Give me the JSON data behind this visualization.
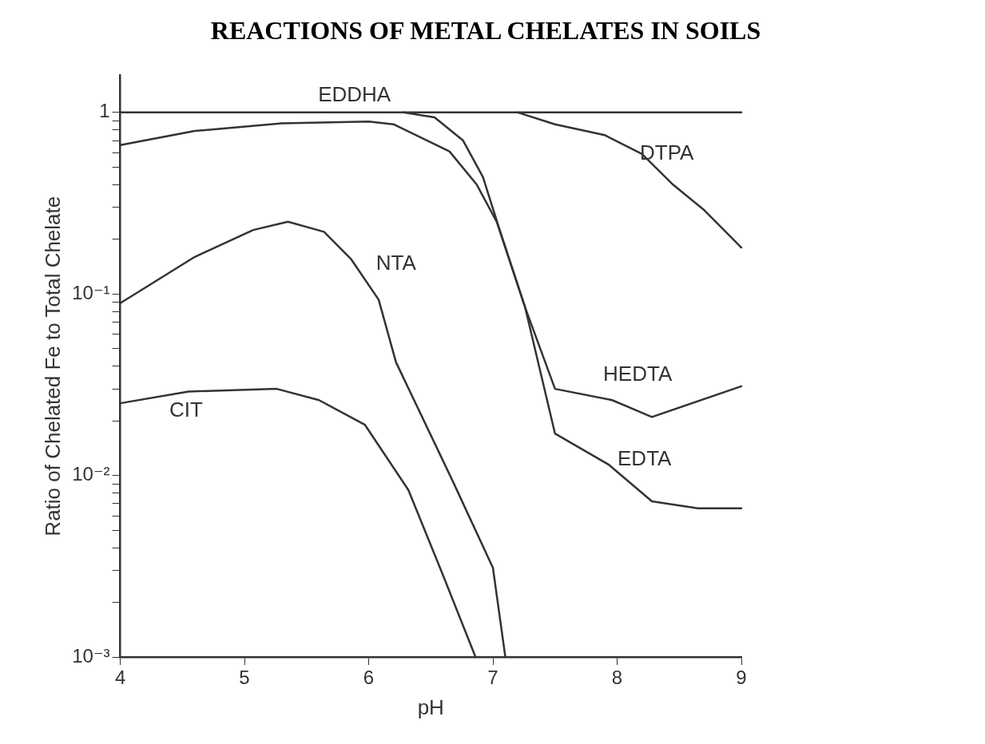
{
  "chart_data": {
    "type": "line",
    "title": "REACTIONS OF METAL CHELATES IN SOILS",
    "xlabel": "pH",
    "ylabel": "Ratio of Chelated Fe to Total Chelate",
    "log": "y",
    "legend": false,
    "grid": false,
    "marker": "none",
    "line_style": "solid",
    "xlim": [
      4,
      9
    ],
    "xticks": [
      4,
      5,
      6,
      7,
      8,
      9
    ],
    "ylim": [
      0.001,
      1.6
    ],
    "yticks": [
      {
        "value": 0.001,
        "label": "10⁻³"
      },
      {
        "value": 0.002,
        "label": null
      },
      {
        "value": 0.003,
        "label": null
      },
      {
        "value": 0.004,
        "label": null
      },
      {
        "value": 0.005,
        "label": null
      },
      {
        "value": 0.006,
        "label": null
      },
      {
        "value": 0.007,
        "label": null
      },
      {
        "value": 0.008,
        "label": null
      },
      {
        "value": 0.009,
        "label": null
      },
      {
        "value": 0.01,
        "label": "10⁻²"
      },
      {
        "value": 0.02,
        "label": null
      },
      {
        "value": 0.03,
        "label": null
      },
      {
        "value": 0.04,
        "label": null
      },
      {
        "value": 0.05,
        "label": null
      },
      {
        "value": 0.06,
        "label": null
      },
      {
        "value": 0.07,
        "label": null
      },
      {
        "value": 0.08,
        "label": null
      },
      {
        "value": 0.09,
        "label": null
      },
      {
        "value": 0.1,
        "label": "10⁻¹"
      },
      {
        "value": 0.2,
        "label": null
      },
      {
        "value": 0.3,
        "label": null
      },
      {
        "value": 0.4,
        "label": null
      },
      {
        "value": 0.5,
        "label": null
      },
      {
        "value": 0.6,
        "label": null
      },
      {
        "value": 0.7,
        "label": null
      },
      {
        "value": 0.8,
        "label": null
      },
      {
        "value": 0.9,
        "label": null
      },
      {
        "value": 1,
        "label": "1"
      }
    ],
    "series": [
      {
        "name": "EDDHA",
        "color": "#333333",
        "x": [
          4,
          9
        ],
        "values": [
          1,
          1
        ]
      },
      {
        "name": "DTPA",
        "color": "#333333",
        "x": [
          7.2,
          7.5,
          7.9,
          8.2,
          8.45,
          8.7,
          9
        ],
        "values": [
          1,
          0.86,
          0.75,
          0.59,
          0.4,
          0.29,
          0.18
        ]
      },
      {
        "name": "HEDTA",
        "color": "#333333",
        "x": [
          4,
          4.6,
          5.3,
          6,
          6.2,
          6.65,
          6.87,
          7.03,
          7.26,
          7.5,
          7.96,
          8.28,
          9
        ],
        "values": [
          0.66,
          0.79,
          0.87,
          0.89,
          0.86,
          0.61,
          0.4,
          0.25,
          0.084,
          0.03,
          0.026,
          0.021,
          0.031
        ]
      },
      {
        "name": "EDTA",
        "color": "#333333",
        "x": [
          6.28,
          6.53,
          6.76,
          6.92,
          7.05,
          7.26,
          7.5,
          7.93,
          8.28,
          8.65,
          9
        ],
        "values": [
          1,
          0.94,
          0.7,
          0.44,
          0.23,
          0.084,
          0.017,
          0.0115,
          0.0072,
          0.0066,
          0.0066
        ]
      },
      {
        "name": "NTA",
        "color": "#333333",
        "x": [
          4,
          4.6,
          5.07,
          5.35,
          5.64,
          5.86,
          6.08,
          6.22,
          6.68,
          7,
          7.1
        ],
        "values": [
          0.089,
          0.16,
          0.225,
          0.25,
          0.22,
          0.155,
          0.093,
          0.042,
          0.0092,
          0.0031,
          0.001
        ]
      },
      {
        "name": "CIT",
        "color": "#333333",
        "x": [
          4,
          4.55,
          5.26,
          5.6,
          5.97,
          6.32,
          6.6,
          6.86
        ],
        "values": [
          0.025,
          0.029,
          0.03,
          0.026,
          0.019,
          0.0083,
          0.0028,
          0.001
        ]
      }
    ]
  }
}
